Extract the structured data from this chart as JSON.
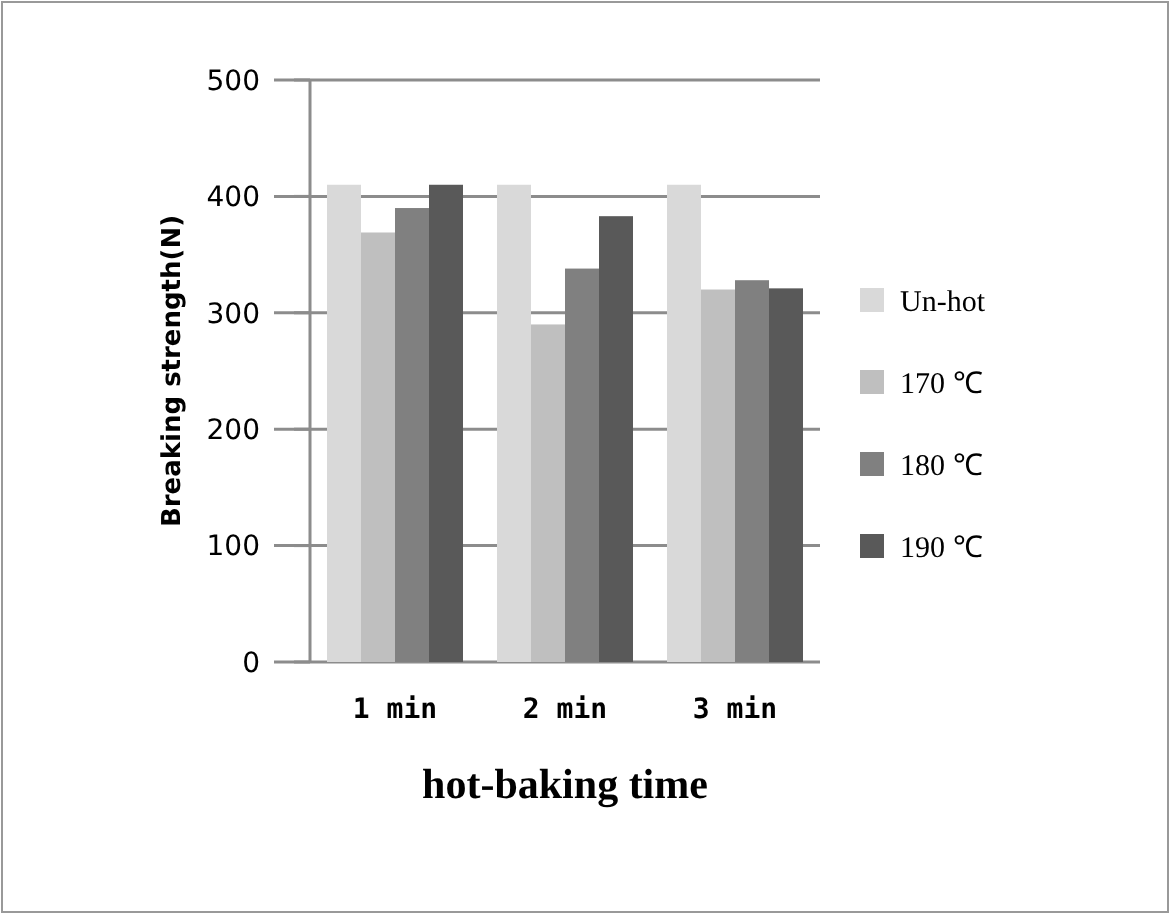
{
  "chart_data": {
    "type": "bar",
    "xlabel": "hot-baking time",
    "ylabel": "Breaking strength(N)",
    "categories": [
      "1 min",
      "2 min",
      "3 min"
    ],
    "series": [
      {
        "name": "Un-hot",
        "color": "#d9d9d9",
        "values": [
          410,
          410,
          410
        ]
      },
      {
        "name": "170 ℃",
        "color": "#bfbfbf",
        "values": [
          369,
          290,
          320
        ]
      },
      {
        "name": "180 ℃",
        "color": "#808080",
        "values": [
          390,
          338,
          328
        ]
      },
      {
        "name": "190 ℃",
        "color": "#595959",
        "values": [
          410,
          383,
          321
        ]
      }
    ],
    "ylim": [
      0,
      500
    ],
    "yticks": [
      0,
      100,
      200,
      300,
      400,
      500
    ],
    "grid": "y",
    "legend": "right"
  }
}
